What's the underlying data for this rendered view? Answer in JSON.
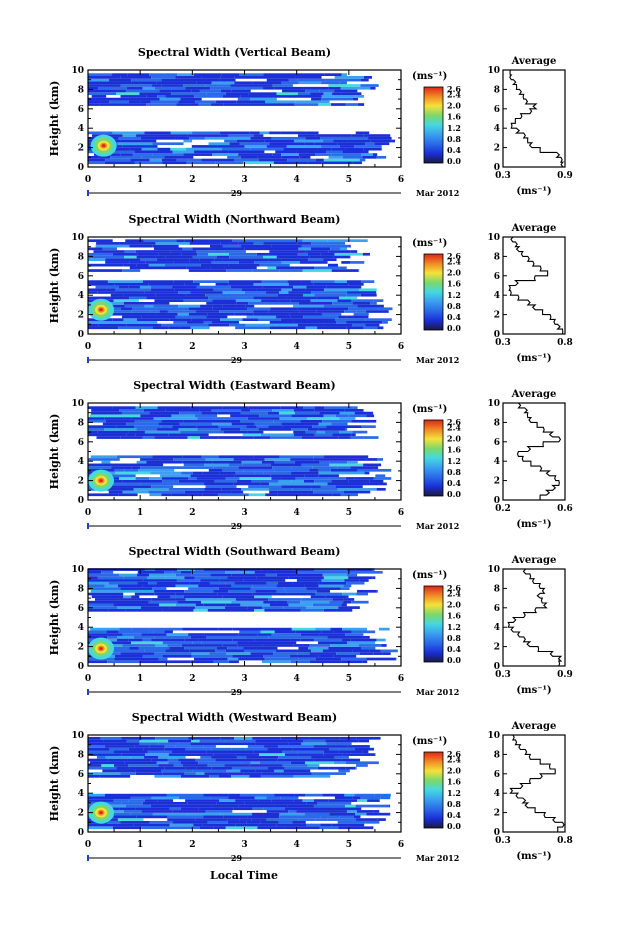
{
  "figure": {
    "xlabel": "Local Time"
  },
  "colorbar": {
    "unit": "(ms⁻¹)",
    "ticks": [
      "2.6",
      "2.4",
      "2.0",
      "1.6",
      "1.2",
      "0.8",
      "0.4",
      "0.0"
    ]
  },
  "average": {
    "title": "Average",
    "xlabel": "(ms⁻¹)"
  },
  "date_axis": {
    "day": "29",
    "month_year": "Mar 2012"
  },
  "colors": {
    "low": "#1a2fd6",
    "mid": "#3aa0f0",
    "cyan": "#45d8e0",
    "green": "#7cd86a",
    "yellow": "#f4e23a",
    "orange": "#f08a26",
    "red": "#e02418",
    "dark": "#1a1a40",
    "frame": "#000000"
  },
  "chart_data": [
    {
      "type": "heatmap",
      "title": "Spectral Width (Vertical Beam)",
      "ylabel": "Height (km)",
      "x_ticks": [
        "0",
        "1",
        "2",
        "3",
        "4",
        "5",
        "6"
      ],
      "y_ticks": [
        "0",
        "2",
        "4",
        "6",
        "8",
        "10"
      ],
      "xlim": [
        0,
        6
      ],
      "ylim": [
        0,
        10
      ],
      "echo_layers": [
        {
          "t_start": 0.0,
          "t_end": 5.3,
          "h_min": 6.3,
          "h_max": 9.6
        },
        {
          "t_start": 0.0,
          "t_end": 5.6,
          "h_min": 0.3,
          "h_max": 3.6
        }
      ],
      "hotspot": {
        "t": 0.3,
        "h": 2.2,
        "value": 2.6
      },
      "avg_profile": {
        "xlim": [
          0.3,
          0.9
        ],
        "x_ticks": [
          "0.3",
          "0.9"
        ],
        "y_ticks": [
          "0",
          "2",
          "4",
          "6",
          "8",
          "10"
        ],
        "height": [
          0,
          0.5,
          1,
          1.5,
          2,
          2.5,
          3,
          3.5,
          4,
          4.5,
          5,
          5.5,
          6,
          6.5,
          7,
          7.5,
          8,
          8.5,
          9,
          9.5
        ],
        "width": [
          0.88,
          0.86,
          0.82,
          0.66,
          0.58,
          0.54,
          0.5,
          0.43,
          0.38,
          0.42,
          0.47,
          0.56,
          0.62,
          0.52,
          0.5,
          0.46,
          0.43,
          0.4,
          0.38,
          0.37
        ]
      }
    },
    {
      "type": "heatmap",
      "title": "Spectral Width (Northward Beam)",
      "ylabel": "Height (km)",
      "x_ticks": [
        "0",
        "1",
        "2",
        "3",
        "4",
        "5",
        "6"
      ],
      "y_ticks": [
        "0",
        "2",
        "4",
        "6",
        "8",
        "10"
      ],
      "xlim": [
        0,
        6
      ],
      "ylim": [
        0,
        10
      ],
      "echo_layers": [
        {
          "t_start": 0.0,
          "t_end": 5.1,
          "h_min": 6.4,
          "h_max": 9.5
        },
        {
          "t_start": 0.0,
          "t_end": 5.5,
          "h_min": 0.5,
          "h_max": 5.3
        }
      ],
      "hotspot": {
        "t": 0.25,
        "h": 2.5,
        "value": 2.2
      },
      "avg_profile": {
        "xlim": [
          0.3,
          0.8
        ],
        "x_ticks": [
          "0.3",
          "0.8"
        ],
        "y_ticks": [
          "0",
          "2",
          "4",
          "6",
          "8",
          "10"
        ],
        "height": [
          0,
          0.5,
          1,
          1.5,
          2,
          2.5,
          3,
          3.5,
          4,
          4.5,
          5,
          5.5,
          6,
          6.5,
          7,
          7.5,
          8,
          8.5,
          9,
          9.5
        ],
        "width": [
          0.78,
          0.74,
          0.72,
          0.68,
          0.62,
          0.56,
          0.5,
          0.42,
          0.36,
          0.35,
          0.4,
          0.56,
          0.66,
          0.6,
          0.54,
          0.5,
          0.46,
          0.43,
          0.4,
          0.38
        ]
      }
    },
    {
      "type": "heatmap",
      "title": "Spectral Width (Eastward Beam)",
      "ylabel": "Height (km)",
      "x_ticks": [
        "0",
        "1",
        "2",
        "3",
        "4",
        "5",
        "6"
      ],
      "y_ticks": [
        "0",
        "2",
        "4",
        "6",
        "8",
        "10"
      ],
      "xlim": [
        0,
        6
      ],
      "ylim": [
        0,
        10
      ],
      "echo_layers": [
        {
          "t_start": 0.0,
          "t_end": 5.3,
          "h_min": 6.3,
          "h_max": 9.6
        },
        {
          "t_start": 0.0,
          "t_end": 5.5,
          "h_min": 0.4,
          "h_max": 4.6
        }
      ],
      "hotspot": {
        "t": 0.25,
        "h": 2.0,
        "value": 2.4
      },
      "avg_profile": {
        "xlim": [
          0.2,
          0.6
        ],
        "x_ticks": [
          "0.2",
          "0.6"
        ],
        "y_ticks": [
          "0",
          "2",
          "4",
          "6",
          "8",
          "10"
        ],
        "height": [
          0,
          0.5,
          1,
          1.5,
          2,
          2.5,
          3,
          3.5,
          4,
          4.5,
          5,
          5.5,
          6,
          6.5,
          7,
          7.5,
          8,
          8.5,
          9,
          9.5
        ],
        "width": [
          0.44,
          0.48,
          0.52,
          0.56,
          0.54,
          0.5,
          0.44,
          0.38,
          0.33,
          0.3,
          0.36,
          0.46,
          0.56,
          0.52,
          0.46,
          0.42,
          0.38,
          0.36,
          0.34,
          0.3
        ]
      }
    },
    {
      "type": "heatmap",
      "title": "Spectral Width (Southward Beam)",
      "ylabel": "Height (km)",
      "x_ticks": [
        "0",
        "1",
        "2",
        "3",
        "4",
        "5",
        "6"
      ],
      "y_ticks": [
        "0",
        "2",
        "4",
        "6",
        "8",
        "10"
      ],
      "xlim": [
        0,
        6
      ],
      "ylim": [
        0,
        10
      ],
      "echo_layers": [
        {
          "t_start": 0.0,
          "t_end": 5.3,
          "h_min": 5.6,
          "h_max": 9.8
        },
        {
          "t_start": 0.0,
          "t_end": 5.6,
          "h_min": 0.3,
          "h_max": 3.9
        }
      ],
      "hotspot": {
        "t": 0.25,
        "h": 1.8,
        "value": 2.6
      },
      "avg_profile": {
        "xlim": [
          0.3,
          0.9
        ],
        "x_ticks": [
          "0.3",
          "0.9"
        ],
        "y_ticks": [
          "0",
          "2",
          "4",
          "6",
          "8",
          "10"
        ],
        "height": [
          0,
          0.5,
          1,
          1.5,
          2,
          2.5,
          3,
          3.5,
          4,
          4.5,
          5,
          5.5,
          6,
          6.5,
          7,
          7.5,
          8,
          8.5,
          9,
          9.5
        ],
        "width": [
          0.84,
          0.86,
          0.78,
          0.64,
          0.56,
          0.5,
          0.46,
          0.4,
          0.35,
          0.4,
          0.5,
          0.62,
          0.72,
          0.68,
          0.66,
          0.7,
          0.66,
          0.6,
          0.56,
          0.52
        ]
      }
    },
    {
      "type": "heatmap",
      "title": "Spectral Width (Westward Beam)",
      "ylabel": "Height (km)",
      "x_ticks": [
        "0",
        "1",
        "2",
        "3",
        "4",
        "5",
        "6"
      ],
      "y_ticks": [
        "0",
        "2",
        "4",
        "6",
        "8",
        "10"
      ],
      "xlim": [
        0,
        6
      ],
      "ylim": [
        0,
        10
      ],
      "echo_layers": [
        {
          "t_start": 0.0,
          "t_end": 5.3,
          "h_min": 5.6,
          "h_max": 9.6
        },
        {
          "t_start": 0.0,
          "t_end": 5.5,
          "h_min": 0.3,
          "h_max": 3.8
        }
      ],
      "hotspot": {
        "t": 0.25,
        "h": 2.0,
        "value": 2.4
      },
      "avg_profile": {
        "xlim": [
          0.3,
          0.8
        ],
        "x_ticks": [
          "0.3",
          "0.8"
        ],
        "y_ticks": [
          "0",
          "2",
          "4",
          "6",
          "8",
          "10"
        ],
        "height": [
          0,
          0.5,
          1,
          1.5,
          2,
          2.5,
          3,
          3.5,
          4,
          4.5,
          5,
          5.5,
          6,
          6.5,
          7,
          7.5,
          8,
          8.5,
          9,
          9.5
        ],
        "width": [
          0.74,
          0.78,
          0.72,
          0.64,
          0.56,
          0.5,
          0.46,
          0.42,
          0.36,
          0.44,
          0.52,
          0.6,
          0.72,
          0.68,
          0.6,
          0.52,
          0.48,
          0.44,
          0.4,
          0.38
        ]
      }
    }
  ]
}
